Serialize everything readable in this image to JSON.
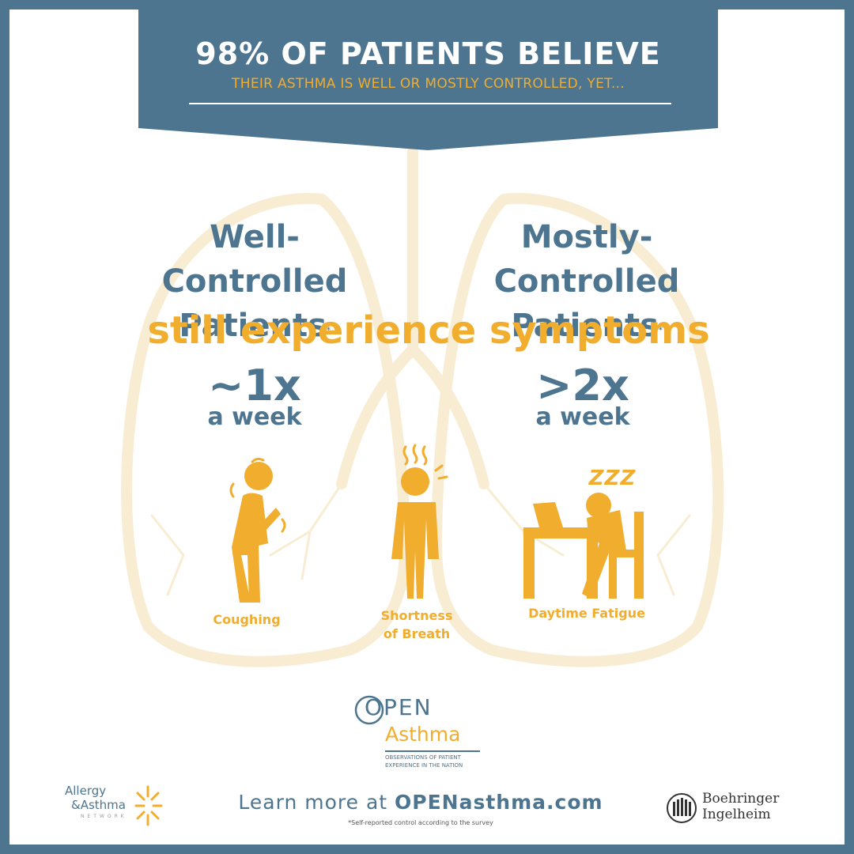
{
  "header": {
    "headline": "98% OF PATIENTS BELIEVE",
    "subheadline": "THEIR ASTHMA IS WELL OR MOSTLY CONTROLLED, YET..."
  },
  "groups": [
    {
      "line1": "Well-Controlled",
      "line2": "Patients",
      "marker": "*",
      "frequency": "~1x",
      "period": "a week"
    },
    {
      "line1": "Mostly-Controlled",
      "line2": "Patients",
      "marker": "*",
      "frequency": ">2x",
      "period": "a week"
    }
  ],
  "middle_statement": "still experience symptoms",
  "symptoms": [
    {
      "label": "Coughing",
      "icon": "coughing-person-icon"
    },
    {
      "line1": "Shortness",
      "line2": "of Breath",
      "icon": "short-of-breath-person-icon"
    },
    {
      "label": "Daytime Fatigue",
      "icon": "sleeping-at-desk-icon"
    }
  ],
  "sleep_letters": "Z Z Z",
  "logos": {
    "open": {
      "open_word": "OPEN",
      "asthma_word": "Asthma",
      "tag1": "OBSERVATIONS OF PATIENT",
      "tag2": "EXPERIENCE IN THE NATION"
    },
    "allergy": {
      "line1": "Allergy",
      "line2": "&Asthma",
      "line3": "NETWORK"
    },
    "boehringer": {
      "line1": "Boehringer",
      "line2": "Ingelheim"
    }
  },
  "footer": {
    "learn_prefix": "Learn more at ",
    "url": "OPENasthma.com",
    "footnote": "*Self-reported control according to the survey"
  },
  "colors": {
    "frame": "#4d7590",
    "accent": "#f0ad2e",
    "text_blue": "#4d7590"
  }
}
